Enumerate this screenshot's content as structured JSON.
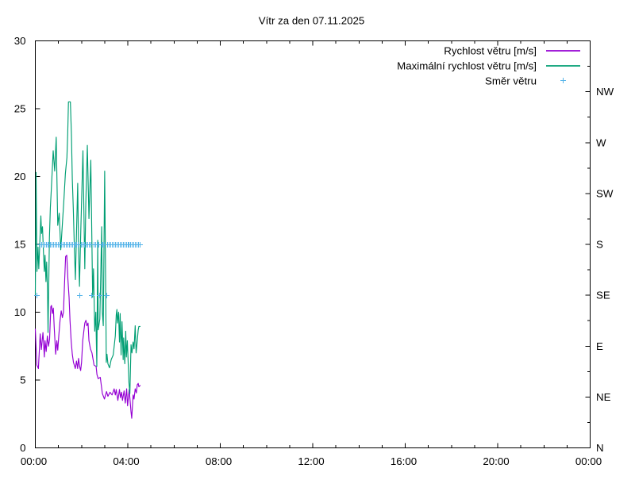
{
  "chart": {
    "title": "Vítr za den 07.11.2025",
    "background_color": "#ffffff",
    "axis_color": "#000000",
    "legend": {
      "entries": [
        {
          "label": "Rychlost větru [m/s]",
          "color": "#9400d3",
          "sample": "line"
        },
        {
          "label": "Maximální rychlost větru [m/s]",
          "color": "#009e73",
          "sample": "line"
        },
        {
          "label": "Směr větru",
          "color": "#56b4e9",
          "sample": "plus-marker"
        }
      ]
    },
    "x_axis": {
      "tick_labels": [
        "00:00",
        "04:00",
        "08:00",
        "12:00",
        "16:00",
        "20:00",
        "00:00"
      ],
      "range_hours": [
        0,
        24
      ],
      "major_step_hours": 4,
      "minor_step_hours": 1
    },
    "y_axis_left": {
      "tick_labels": [
        "0",
        "5",
        "10",
        "15",
        "20",
        "25",
        "30"
      ],
      "range": [
        0,
        30
      ],
      "major_step": 5
    },
    "y_axis_right": {
      "tick_labels": [
        "N",
        "NE",
        "E",
        "SE",
        "S",
        "SW",
        "W",
        "NW"
      ],
      "meaning": "wind direction",
      "units_per_label_step": 3.75,
      "minor_step": 1.875
    },
    "chart_data": {
      "type": "line",
      "x_unit": "minutes from 00:00",
      "y_unit_left": "m/s",
      "title": "Vítr za den 07.11.2025",
      "series": [
        {
          "name": "Rychlost větru [m/s]",
          "type": "line",
          "color": "#9400d3",
          "points": [
            [
              0,
              8.75
            ],
            [
              2,
              7.4
            ],
            [
              4,
              6.1
            ],
            [
              8,
              5.85
            ],
            [
              12.6,
              8.4
            ],
            [
              15.6,
              7.25
            ],
            [
              19.8,
              8.5
            ],
            [
              23.4,
              6.7
            ],
            [
              25.2,
              7.9
            ],
            [
              28.2,
              7.1
            ],
            [
              31.2,
              8.25
            ],
            [
              34.2,
              7.5
            ],
            [
              37,
              8.0
            ],
            [
              40.2,
              10.4
            ],
            [
              42,
              10.5
            ],
            [
              44.4,
              9.9
            ],
            [
              46.8,
              10.3
            ],
            [
              49,
              8.9
            ],
            [
              52.8,
              6.9
            ],
            [
              55.8,
              7.9
            ],
            [
              58.2,
              7.2
            ],
            [
              61,
              8.3
            ],
            [
              64.2,
              9.4
            ],
            [
              67.2,
              10.1
            ],
            [
              70.2,
              9.6
            ],
            [
              73,
              10.0
            ],
            [
              76.2,
              12.4
            ],
            [
              78.6,
              14.1
            ],
            [
              81.6,
              14.2
            ],
            [
              84.6,
              12.4
            ],
            [
              87.6,
              11.1
            ],
            [
              90,
              9.4
            ],
            [
              93,
              7.9
            ],
            [
              96,
              6.9
            ],
            [
              99,
              6.3
            ],
            [
              103.8,
              5.85
            ],
            [
              106.8,
              6.4
            ],
            [
              109.8,
              5.85
            ],
            [
              112.2,
              6.6
            ],
            [
              115,
              6.0
            ],
            [
              117.6,
              5.7
            ],
            [
              120,
              6.3
            ],
            [
              123,
              7.9
            ],
            [
              128.4,
              9.2
            ],
            [
              131.4,
              9.4
            ],
            [
              133.8,
              9.0
            ],
            [
              136.8,
              9.2
            ],
            [
              139.2,
              7.9
            ],
            [
              143,
              7.3
            ],
            [
              147,
              7.0
            ],
            [
              152.4,
              6.1
            ],
            [
              157.8,
              6.0
            ],
            [
              160,
              5.4
            ],
            [
              163.2,
              5.1
            ],
            [
              168.6,
              5.2
            ],
            [
              174,
              4.0
            ],
            [
              179.4,
              3.6
            ],
            [
              184.8,
              4.15
            ],
            [
              188.4,
              3.8
            ],
            [
              193.8,
              4.1
            ],
            [
              199.2,
              3.9
            ],
            [
              204.6,
              4.35
            ],
            [
              207.6,
              3.9
            ],
            [
              210,
              4.3
            ],
            [
              214.2,
              3.5
            ],
            [
              218.4,
              4.3
            ],
            [
              220.8,
              3.7
            ],
            [
              223.8,
              4.1
            ],
            [
              226.2,
              3.5
            ],
            [
              230.4,
              4.2
            ],
            [
              233.4,
              3.3
            ],
            [
              237,
              4.35
            ],
            [
              239.4,
              3.1
            ],
            [
              243.6,
              4.3
            ],
            [
              248.4,
              2.64
            ],
            [
              250.2,
              2.18
            ],
            [
              253.8,
              3.9
            ],
            [
              256.2,
              3.6
            ],
            [
              259.2,
              4.35
            ],
            [
              262.2,
              4.05
            ],
            [
              264.6,
              4.65
            ],
            [
              267,
              4.75
            ],
            [
              268.8,
              4.5
            ],
            [
              272,
              4.6
            ]
          ]
        },
        {
          "name": "Maximální rychlost větru [m/s]",
          "type": "line",
          "color": "#009e73",
          "points": [
            [
              0,
              11.3
            ],
            [
              2,
              20.3
            ],
            [
              4.2,
              13.0
            ],
            [
              7,
              14.8
            ],
            [
              9,
              13.2
            ],
            [
              14.4,
              17.1
            ],
            [
              16.2,
              15.8
            ],
            [
              18.6,
              16.3
            ],
            [
              21,
              14.5
            ],
            [
              23.4,
              13.0
            ],
            [
              25.2,
              14.2
            ],
            [
              27.6,
              12.25
            ],
            [
              29.4,
              13.7
            ],
            [
              31.8,
              11.4
            ],
            [
              33,
              8.5
            ],
            [
              36.6,
              15.5
            ],
            [
              39,
              17.7
            ],
            [
              41.4,
              19.0
            ],
            [
              46.4,
              21.9
            ],
            [
              50.3,
              20.4
            ],
            [
              54.2,
              22.9
            ],
            [
              58.2,
              16.4
            ],
            [
              62,
              17.3
            ],
            [
              66,
              14.6
            ],
            [
              70,
              16.4
            ],
            [
              74,
              18.2
            ],
            [
              78,
              20.2
            ],
            [
              82,
              21.4
            ],
            [
              84,
              23.1
            ],
            [
              86,
              25.5
            ],
            [
              91,
              25.5
            ],
            [
              93.7,
              23.1
            ],
            [
              96,
              19.8
            ],
            [
              98.5,
              17.7
            ],
            [
              101.5,
              14.6
            ],
            [
              104,
              12.4
            ],
            [
              107,
              16.0
            ],
            [
              110,
              19.5
            ],
            [
              112,
              15.0
            ],
            [
              114.6,
              11.9
            ],
            [
              118,
              16.0
            ],
            [
              123.6,
              21.9
            ],
            [
              128.4,
              13.2
            ],
            [
              131,
              18.0
            ],
            [
              135,
              22.3
            ],
            [
              139.2,
              16.9
            ],
            [
              144,
              21.2
            ],
            [
              148.8,
              11.1
            ],
            [
              151,
              13.2
            ],
            [
              154.2,
              8.6
            ],
            [
              157,
              10.0
            ],
            [
              159.6,
              6.0
            ],
            [
              162,
              15.3
            ],
            [
              163.2,
              8.7
            ],
            [
              165,
              9.0
            ],
            [
              167.4,
              9.5
            ],
            [
              170,
              13.0
            ],
            [
              172.2,
              16.3
            ],
            [
              174,
              10.0
            ],
            [
              176.4,
              9.0
            ],
            [
              180,
              20.4
            ],
            [
              184.2,
              6.3
            ],
            [
              186,
              6.9
            ],
            [
              188.4,
              6.2
            ],
            [
              192.6,
              5.9
            ],
            [
              196.8,
              6.5
            ],
            [
              202.2,
              6.85
            ],
            [
              207.6,
              8.25
            ],
            [
              210,
              9.8
            ],
            [
              211.8,
              10.2
            ],
            [
              213,
              9.2
            ],
            [
              216,
              10.0
            ],
            [
              218.4,
              7.8
            ],
            [
              220.2,
              9.9
            ],
            [
              222.6,
              6.85
            ],
            [
              225,
              9.3
            ],
            [
              228,
              6.5
            ],
            [
              229.2,
              8.1
            ],
            [
              232.2,
              6.2
            ],
            [
              234.6,
              8.6
            ],
            [
              236.4,
              6.7
            ],
            [
              238.8,
              7.9
            ],
            [
              243,
              4.8
            ],
            [
              245.4,
              4.0
            ],
            [
              248.4,
              7.6
            ],
            [
              250.8,
              7.0
            ],
            [
              253.8,
              7.8
            ],
            [
              256.2,
              7.3
            ],
            [
              259.2,
              9.0
            ],
            [
              261.6,
              7.0
            ],
            [
              264.6,
              7.9
            ],
            [
              267,
              8.7
            ],
            [
              268.8,
              8.95
            ],
            [
              271.8,
              8.95
            ]
          ]
        },
        {
          "name": "Směr větru",
          "type": "scatter",
          "marker": "plus",
          "color": "#56b4e9",
          "points": [
            [
              3,
              "SE"
            ],
            [
              11,
              "S"
            ],
            [
              15,
              "S"
            ],
            [
              19,
              "S"
            ],
            [
              23,
              "S"
            ],
            [
              27,
              "S"
            ],
            [
              31,
              "S"
            ],
            [
              35,
              "S"
            ],
            [
              39,
              "S"
            ],
            [
              43,
              "S"
            ],
            [
              47,
              "S"
            ],
            [
              51,
              "S"
            ],
            [
              55,
              "S"
            ],
            [
              59,
              "S"
            ],
            [
              63,
              "S"
            ],
            [
              67,
              "S"
            ],
            [
              71,
              "S"
            ],
            [
              75,
              "S"
            ],
            [
              79,
              "S"
            ],
            [
              83,
              "S"
            ],
            [
              87,
              "S"
            ],
            [
              91,
              "S"
            ],
            [
              95,
              "S"
            ],
            [
              99,
              "S"
            ],
            [
              103,
              "S"
            ],
            [
              107,
              "S"
            ],
            [
              111,
              "S"
            ],
            [
              114,
              "SE"
            ],
            [
              119,
              "S"
            ],
            [
              123,
              "S"
            ],
            [
              127,
              "S"
            ],
            [
              131,
              "S"
            ],
            [
              135,
              "S"
            ],
            [
              139,
              "S"
            ],
            [
              143,
              "S"
            ],
            [
              145,
              "SE"
            ],
            [
              151,
              "S"
            ],
            [
              155,
              "S"
            ],
            [
              159,
              "S"
            ],
            [
              163,
              "S"
            ],
            [
              165,
              "SE"
            ],
            [
              171,
              "S"
            ],
            [
              175,
              "S"
            ],
            [
              179,
              "S"
            ],
            [
              184,
              "SE"
            ],
            [
              187,
              "S"
            ],
            [
              191,
              "S"
            ],
            [
              195,
              "S"
            ],
            [
              199,
              "S"
            ],
            [
              203,
              "S"
            ],
            [
              207,
              "S"
            ],
            [
              211,
              "S"
            ],
            [
              215,
              "S"
            ],
            [
              219,
              "S"
            ],
            [
              223,
              "S"
            ],
            [
              227,
              "S"
            ],
            [
              231,
              "S"
            ],
            [
              235,
              "S"
            ],
            [
              239,
              "S"
            ],
            [
              243,
              "S"
            ],
            [
              247,
              "S"
            ],
            [
              251,
              "S"
            ],
            [
              255,
              "S"
            ],
            [
              259,
              "S"
            ],
            [
              263,
              "S"
            ],
            [
              267,
              "S"
            ],
            [
              271,
              "S"
            ]
          ]
        }
      ]
    }
  }
}
